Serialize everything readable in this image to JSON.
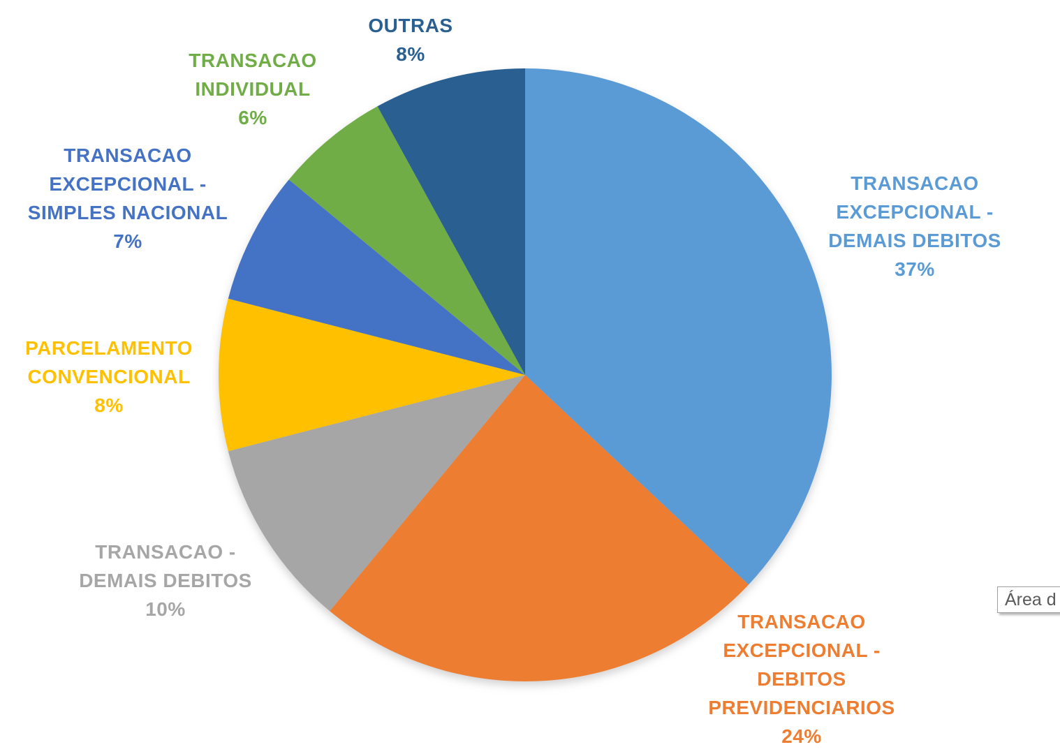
{
  "chart_data": {
    "type": "pie",
    "title": "",
    "unit": "%",
    "total": 100,
    "start_angle_deg": 0,
    "direction": "clockwise",
    "legend": "none",
    "labels_position": "outside, category name + percentage, colored as slice",
    "slices": [
      {
        "label": "TRANSACAO EXCEPCIONAL - DEMAIS DEBITOS",
        "label_lines": [
          "TRANSACAO",
          "EXCEPCIONAL -",
          "DEMAIS DEBITOS"
        ],
        "value": 37,
        "value_label": "37%",
        "color": "#5B9BD5"
      },
      {
        "label": "TRANSACAO EXCEPCIONAL - DEBITOS PREVIDENCIARIOS",
        "label_lines": [
          "TRANSACAO",
          "EXCEPCIONAL -",
          "DEBITOS",
          "PREVIDENCIARIOS"
        ],
        "value": 24,
        "value_label": "24%",
        "color": "#ED7D31"
      },
      {
        "label": "TRANSACAO - DEMAIS DEBITOS",
        "label_lines": [
          "TRANSACAO -",
          "DEMAIS DEBITOS"
        ],
        "value": 10,
        "value_label": "10%",
        "color": "#A6A6A6"
      },
      {
        "label": "PARCELAMENTO CONVENCIONAL",
        "label_lines": [
          "PARCELAMENTO",
          "CONVENCIONAL"
        ],
        "value": 8,
        "value_label": "8%",
        "color": "#FFC000"
      },
      {
        "label": "TRANSACAO EXCEPCIONAL - SIMPLES NACIONAL",
        "label_lines": [
          "TRANSACAO",
          "EXCEPCIONAL -",
          "SIMPLES NACIONAL"
        ],
        "value": 7,
        "value_label": "7%",
        "color": "#4472C4"
      },
      {
        "label": "TRANSACAO INDIVIDUAL",
        "label_lines": [
          "TRANSACAO",
          "INDIVIDUAL"
        ],
        "value": 6,
        "value_label": "6%",
        "color": "#70AD47"
      },
      {
        "label": "OUTRAS",
        "label_lines": [
          "OUTRAS"
        ],
        "value": 8,
        "value_label": "8%",
        "color": "#2A5F91"
      }
    ]
  },
  "tooltip": {
    "text": "Área d"
  },
  "colors": {
    "background": "#FFFFFF",
    "tooltip_border": "#9E9E9E",
    "tooltip_text": "#5A5A5A"
  }
}
